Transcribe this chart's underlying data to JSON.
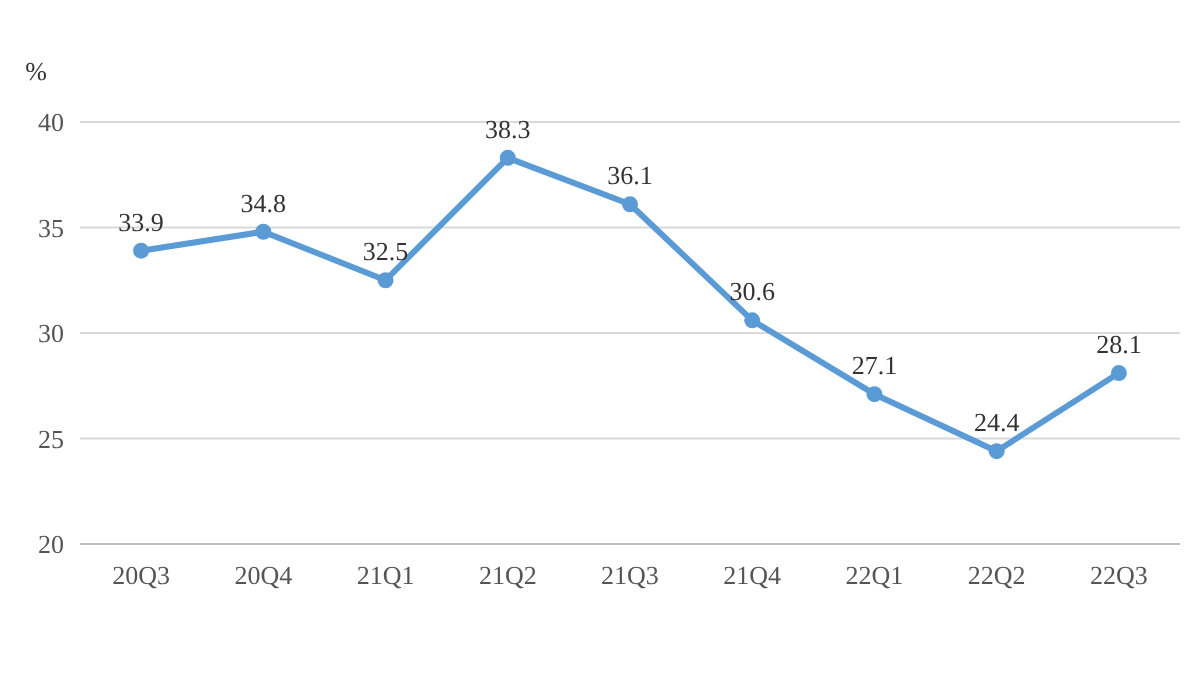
{
  "chart_data": {
    "type": "line",
    "ylabel": "%",
    "categories": [
      "20Q3",
      "20Q4",
      "21Q1",
      "21Q2",
      "21Q3",
      "21Q4",
      "22Q1",
      "22Q2",
      "22Q3"
    ],
    "series": [
      {
        "color": "#5b9bd5",
        "values": [
          33.9,
          34.8,
          32.5,
          38.3,
          36.1,
          30.6,
          27.1,
          24.4,
          28.1
        ]
      }
    ],
    "ylim": [
      20,
      40
    ],
    "yticks": [
      20,
      25,
      30,
      35,
      40
    ],
    "grid": "y",
    "marker": "circle",
    "line_style": "solid",
    "data_labels": true
  }
}
